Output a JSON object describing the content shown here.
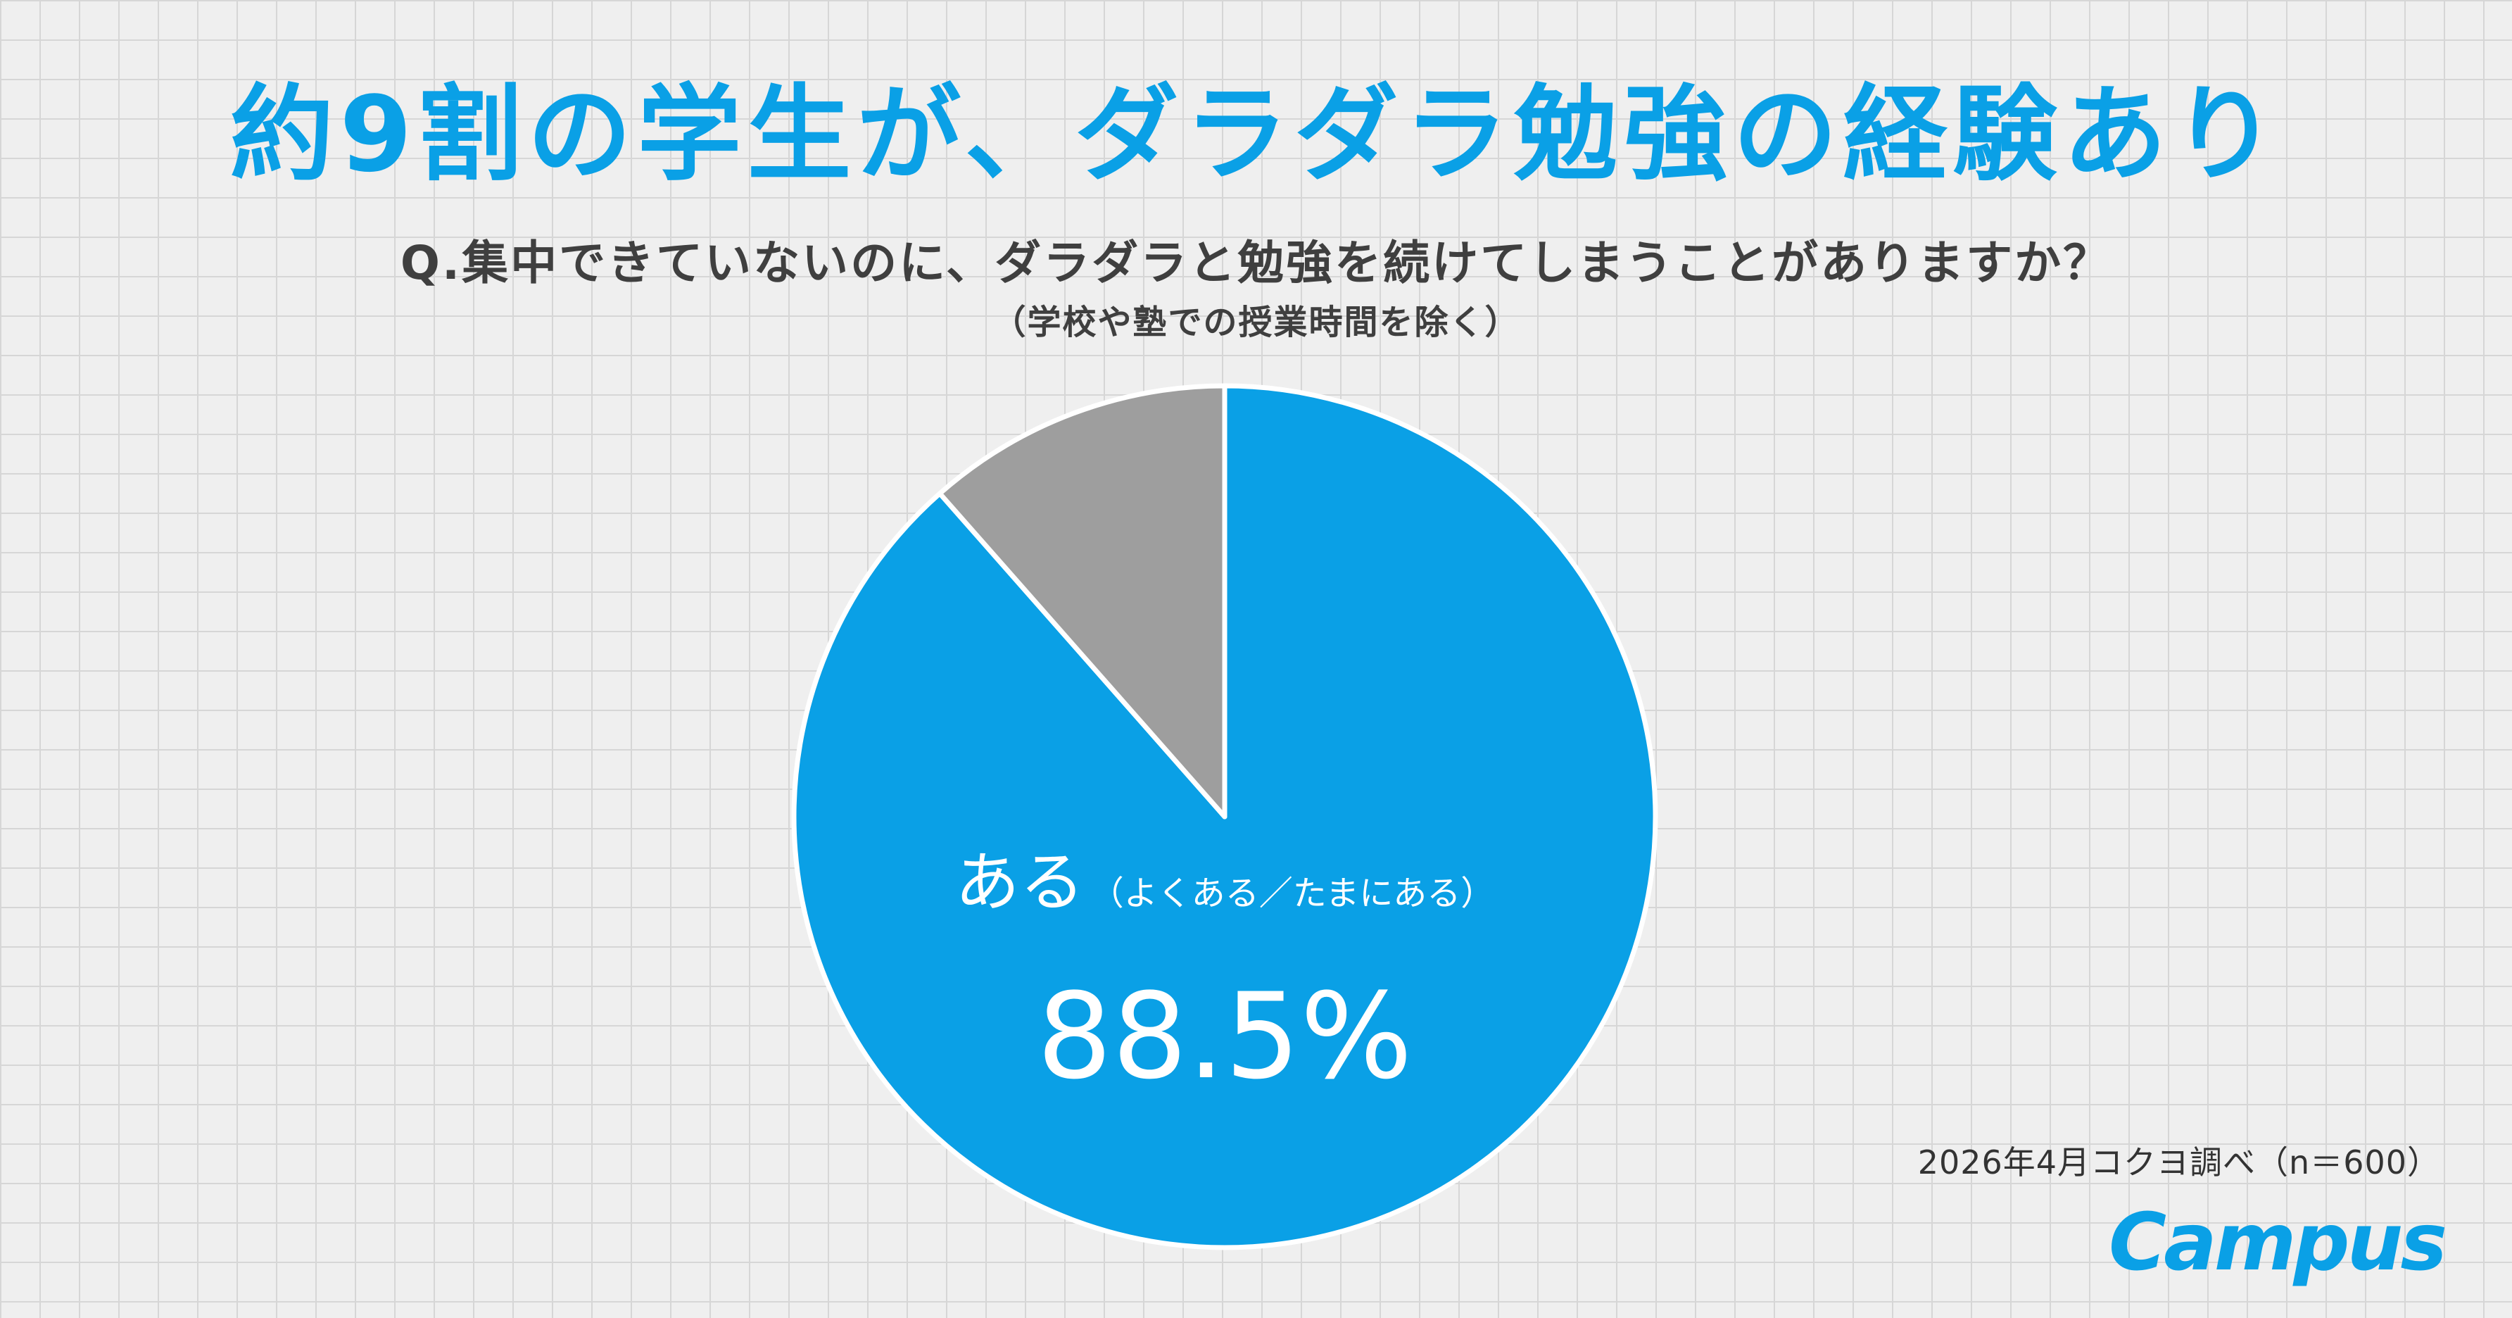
{
  "headline": "約9割の学生が、ダラダラ勉強の経験あり",
  "question": "Q.集中できていないのに、ダラダラと勉強を続けてしまうことがありますか？",
  "question_note": "（学校や塾での授業時間を除く）",
  "source": "2026年4月コクヨ調べ（n＝600）",
  "logo": "Campus",
  "colors": {
    "accent": "#0aa0e6",
    "gray": "#9e9e9e",
    "grid": "#d6d6d6"
  },
  "chart_data": {
    "type": "pie",
    "slices": [
      {
        "label": "ある",
        "sublabel": "（よくある／たまにある）",
        "value": 88.5,
        "value_label": "88.5%",
        "color": "#0aa0e6"
      },
      {
        "label": "",
        "value": 11.5,
        "color": "#9e9e9e"
      }
    ]
  }
}
